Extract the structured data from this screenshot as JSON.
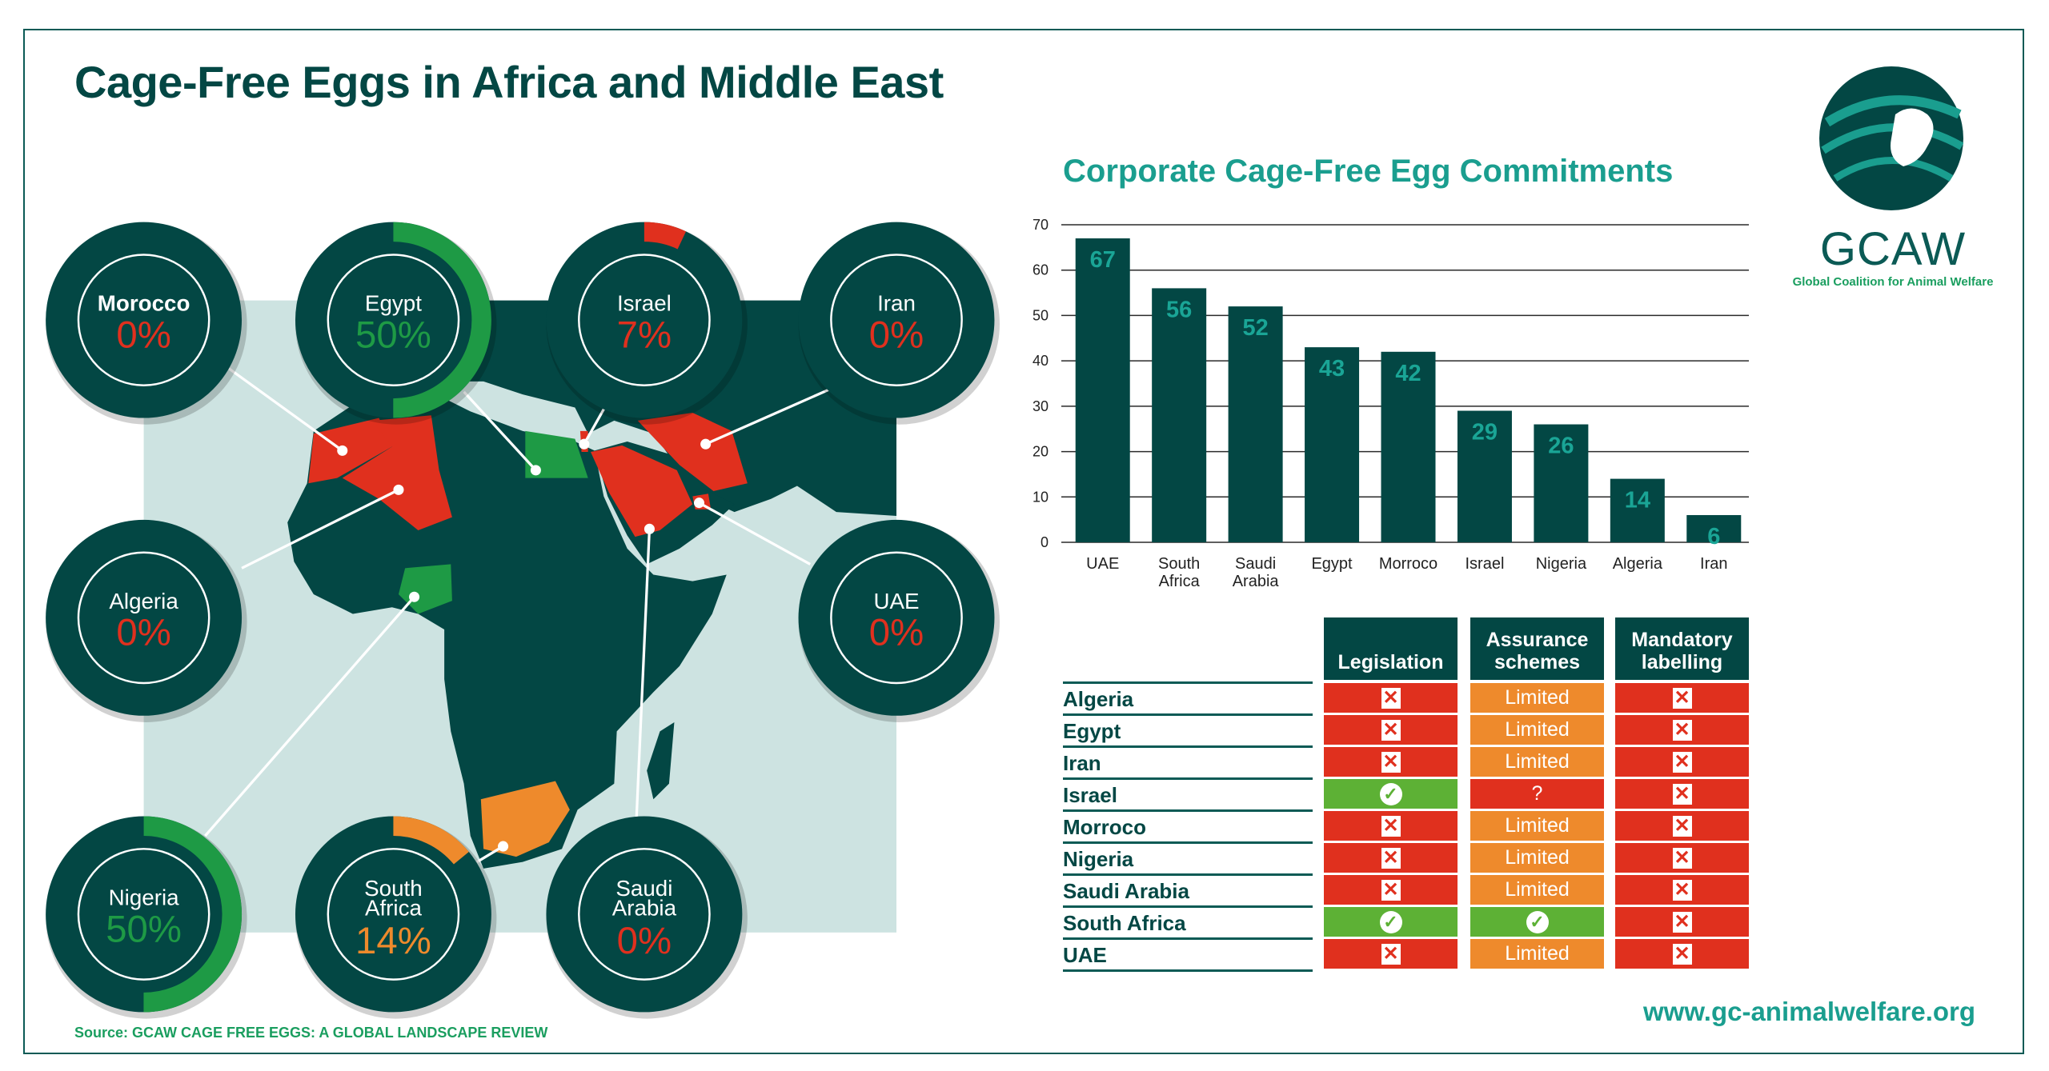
{
  "title": "Cage-Free Eggs in Africa and Middle East",
  "colors": {
    "dark": "#034744",
    "teal": "#1a9e8f",
    "red": "#e0301e",
    "orange": "#ee8a2c",
    "green": "#1e9a45",
    "table_green": "#5db135"
  },
  "gauges": [
    {
      "country": "Morocco",
      "pct_label": "0%",
      "pct": 0,
      "status": "red"
    },
    {
      "country": "Egypt",
      "pct_label": "50%",
      "pct": 50,
      "status": "green"
    },
    {
      "country": "Israel",
      "pct_label": "7%",
      "pct": 7,
      "status": "red"
    },
    {
      "country": "Iran",
      "pct_label": "0%",
      "pct": 0,
      "status": "red"
    },
    {
      "country": "Algeria",
      "pct_label": "0%",
      "pct": 0,
      "status": "red"
    },
    {
      "country": "UAE",
      "pct_label": "0%",
      "pct": 0,
      "status": "red"
    },
    {
      "country": "Nigeria",
      "pct_label": "50%",
      "pct": 50,
      "status": "green"
    },
    {
      "country": "South",
      "country2": "Africa",
      "pct_label": "14%",
      "pct": 14,
      "status": "orange"
    },
    {
      "country": "Saudi",
      "country2": "Arabia",
      "pct_label": "0%",
      "pct": 0,
      "status": "red"
    }
  ],
  "chart_data": {
    "type": "bar",
    "title": "Corporate Cage-Free Egg Commitments",
    "categories": [
      "UAE",
      "South Africa",
      "Saudi Arabia",
      "Egypt",
      "Morroco",
      "Israel",
      "Nigeria",
      "Algeria",
      "Iran"
    ],
    "values": [
      67,
      56,
      52,
      43,
      42,
      29,
      26,
      14,
      6
    ],
    "ylim": [
      0,
      70
    ],
    "yticks": [
      0,
      10,
      20,
      30,
      40,
      50,
      60,
      70
    ],
    "grid": true,
    "xlabel": "",
    "ylabel": ""
  },
  "table": {
    "headers": [
      "Legislation",
      "Assurance schemes",
      "Mandatory labelling"
    ],
    "rows": [
      {
        "country": "Algeria",
        "cells": [
          "no",
          "Limited",
          "no"
        ]
      },
      {
        "country": "Egypt",
        "cells": [
          "no",
          "Limited",
          "no"
        ]
      },
      {
        "country": "Iran",
        "cells": [
          "no",
          "Limited",
          "no"
        ]
      },
      {
        "country": "Israel",
        "cells": [
          "yes",
          "?",
          "no"
        ]
      },
      {
        "country": "Morroco",
        "cells": [
          "no",
          "Limited",
          "no"
        ]
      },
      {
        "country": "Nigeria",
        "cells": [
          "no",
          "Limited",
          "no"
        ]
      },
      {
        "country": "Saudi Arabia",
        "cells": [
          "no",
          "Limited",
          "no"
        ]
      },
      {
        "country": "South Africa",
        "cells": [
          "yes",
          "yes",
          "no"
        ]
      },
      {
        "country": "UAE",
        "cells": [
          "no",
          "Limited",
          "no"
        ]
      }
    ]
  },
  "logo": {
    "name": "GCAW",
    "subtitle": "Global Coalition for Animal Welfare"
  },
  "url": "www.gc-animalwelfare.org",
  "source": "Source: GCAW CAGE FREE EGGS: A GLOBAL LANDSCAPE REVIEW"
}
